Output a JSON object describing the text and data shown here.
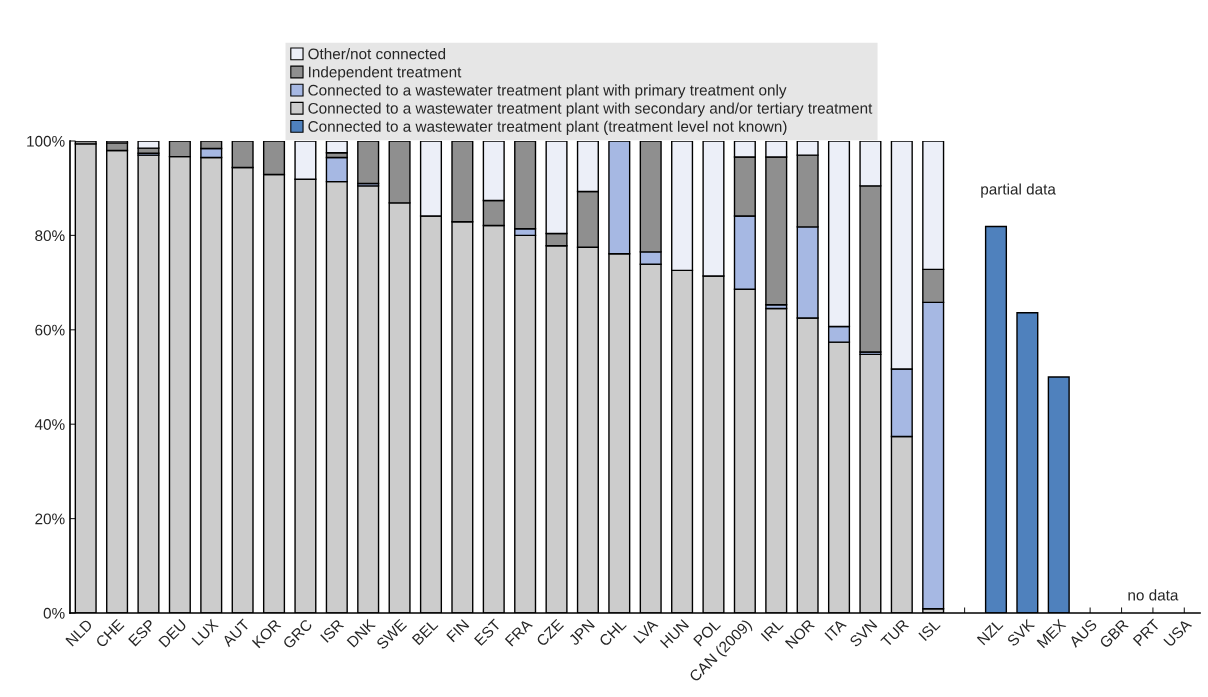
{
  "chart_data": {
    "type": "bar",
    "stacked": true,
    "categories": [
      "NLD",
      "CHE",
      "ESP",
      "DEU",
      "LUX",
      "AUT",
      "KOR",
      "GRC",
      "ISR",
      "DNK",
      "SWE",
      "BEL",
      "FIN",
      "EST",
      "FRA",
      "CZE",
      "JPN",
      "CHL",
      "LVA",
      "HUN",
      "POL",
      "CAN (2009)",
      "IRL",
      "NOR",
      "ITA",
      "SVN",
      "TUR",
      "ISL",
      null,
      "NZL",
      "SVK",
      "MEX",
      "AUS",
      "GBR",
      "PRT",
      "USA"
    ],
    "series": [
      {
        "name": "Connected to a wastewater treatment plant (treatment level not known)",
        "color": "#4f81bd",
        "values": [
          null,
          null,
          null,
          null,
          null,
          null,
          null,
          null,
          null,
          null,
          null,
          null,
          null,
          null,
          null,
          null,
          null,
          null,
          null,
          null,
          null,
          null,
          null,
          null,
          null,
          null,
          null,
          null,
          null,
          81.9,
          63.6,
          50.0,
          null,
          null,
          null,
          null
        ]
      },
      {
        "name": "Connected to a wastewater treatment plant with secondary and/or tertiary treatment",
        "color": "#cccccc",
        "values": [
          99.4,
          98.0,
          97.0,
          96.7,
          96.5,
          94.4,
          92.9,
          91.9,
          91.4,
          90.5,
          86.9,
          84.1,
          82.9,
          82.1,
          80.0,
          77.8,
          77.5,
          76.1,
          73.9,
          72.6,
          71.4,
          68.6,
          64.5,
          62.5,
          57.4,
          54.8,
          37.4,
          0.9,
          null,
          null,
          null,
          null,
          null,
          null,
          null,
          null
        ]
      },
      {
        "name": "Connected to a wastewater treatment plant with primary treatment only",
        "color": "#a6b8e3",
        "values": [
          null,
          null,
          0.4,
          null,
          1.9,
          null,
          null,
          null,
          5.1,
          0.5,
          null,
          null,
          null,
          null,
          1.4,
          null,
          null,
          23.9,
          2.6,
          null,
          null,
          15.5,
          0.8,
          19.3,
          3.3,
          0.5,
          14.3,
          64.9,
          null,
          null,
          null,
          null,
          null,
          null,
          null,
          null
        ]
      },
      {
        "name": "Independent treatment",
        "color": "#8f8f8f",
        "values": [
          0.6,
          1.6,
          1.1,
          3.3,
          1.6,
          5.6,
          7.1,
          null,
          1.0,
          9.0,
          13.1,
          null,
          17.1,
          5.3,
          18.6,
          2.6,
          11.8,
          null,
          23.5,
          null,
          null,
          12.5,
          31.3,
          15.2,
          null,
          35.2,
          null,
          7.0,
          null,
          null,
          null,
          null,
          null,
          null,
          null,
          null
        ]
      },
      {
        "name": "Other/not connected",
        "color": "#eceff8",
        "values": [
          null,
          0.4,
          1.5,
          null,
          null,
          null,
          null,
          8.1,
          2.5,
          null,
          null,
          15.9,
          null,
          12.6,
          null,
          19.6,
          10.7,
          null,
          null,
          27.4,
          28.6,
          3.4,
          3.4,
          3.0,
          39.3,
          9.5,
          48.3,
          27.2,
          null,
          null,
          null,
          null,
          null,
          null,
          null,
          null
        ]
      }
    ],
    "ylim": [
      0,
      100
    ],
    "yticks": [
      {
        "value": 0,
        "label": "0%"
      },
      {
        "value": 20,
        "label": "20%"
      },
      {
        "value": 40,
        "label": "40%"
      },
      {
        "value": 60,
        "label": "60%"
      },
      {
        "value": 80,
        "label": "80%"
      },
      {
        "value": 100,
        "label": "100%"
      }
    ],
    "legend": "top",
    "grid": false,
    "annotations": [
      "partial data",
      "no data"
    ]
  }
}
